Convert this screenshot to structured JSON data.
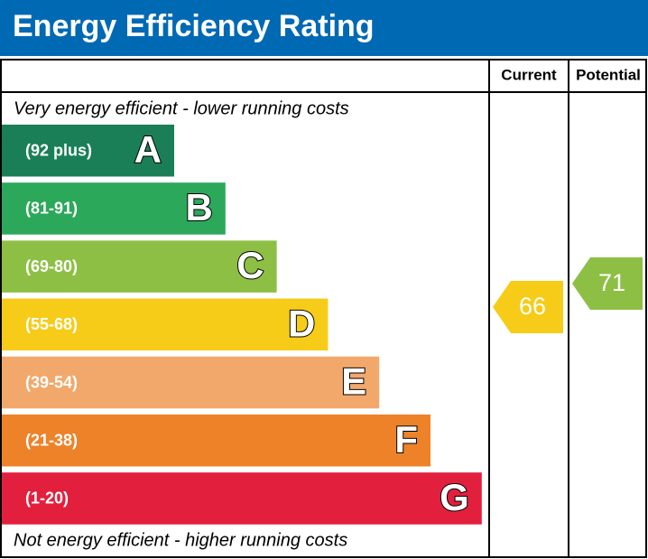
{
  "title": "Energy Efficiency Rating",
  "columns": {
    "current": "Current",
    "potential": "Potential"
  },
  "top_note": "Very energy efficient - lower running costs",
  "bottom_note": "Not energy efficient - higher running costs",
  "bands": [
    {
      "range": "(92 plus)",
      "letter": "A",
      "color": "#1a7f56"
    },
    {
      "range": "(81-91)",
      "letter": "B",
      "color": "#2ca85a"
    },
    {
      "range": "(69-80)",
      "letter": "C",
      "color": "#8dbf45"
    },
    {
      "range": "(55-68)",
      "letter": "D",
      "color": "#f6cc18"
    },
    {
      "range": "(39-54)",
      "letter": "E",
      "color": "#f2a86a"
    },
    {
      "range": "(21-38)",
      "letter": "F",
      "color": "#ee8229"
    },
    {
      "range": "(1-20)",
      "letter": "G",
      "color": "#e2203d"
    }
  ],
  "current": {
    "value": 66,
    "color": "#f6cc18"
  },
  "potential": {
    "value": 71,
    "color": "#8dbf45"
  }
}
